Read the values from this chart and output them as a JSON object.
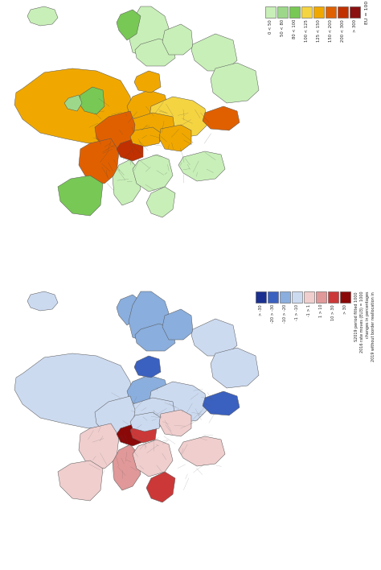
{
  "figsize": [
    4.74,
    7.08
  ],
  "dpi": 100,
  "bg_color": "#ffffff",
  "top_legend_colors": [
    "#c8efb8",
    "#9dd88a",
    "#78c855",
    "#f5d442",
    "#f0a800",
    "#e06000",
    "#c03000",
    "#8b1010"
  ],
  "top_legend_labels": [
    "0 < 50",
    "50 < 80",
    "80 < 100",
    "100 < 125",
    "125 < 150",
    "150 < 200",
    "200 < 300",
    "> 300"
  ],
  "top_legend_eu_label": "EU = 100",
  "bottom_legend_colors": [
    "#1a2f8f",
    "#3a60c0",
    "#8aaedd",
    "#ccdaf0",
    "#f0cece",
    "#e09898",
    "#cc3838",
    "#8b0808"
  ],
  "bottom_legend_labels": [
    "> -30",
    "-20 > -30",
    "-10 > -20",
    "-1 > -10",
    "-1 > 1",
    "1 > 10",
    "10 > 30",
    "> 30"
  ],
  "bottom_legend_line1": "S2019 period fitted 1000",
  "bottom_legend_line2": "2016 rate moves (EU3) = 1000",
  "bottom_legend_line3": "changes in percentages",
  "bottom_legend_line4": "2019 without border reallocation in"
}
